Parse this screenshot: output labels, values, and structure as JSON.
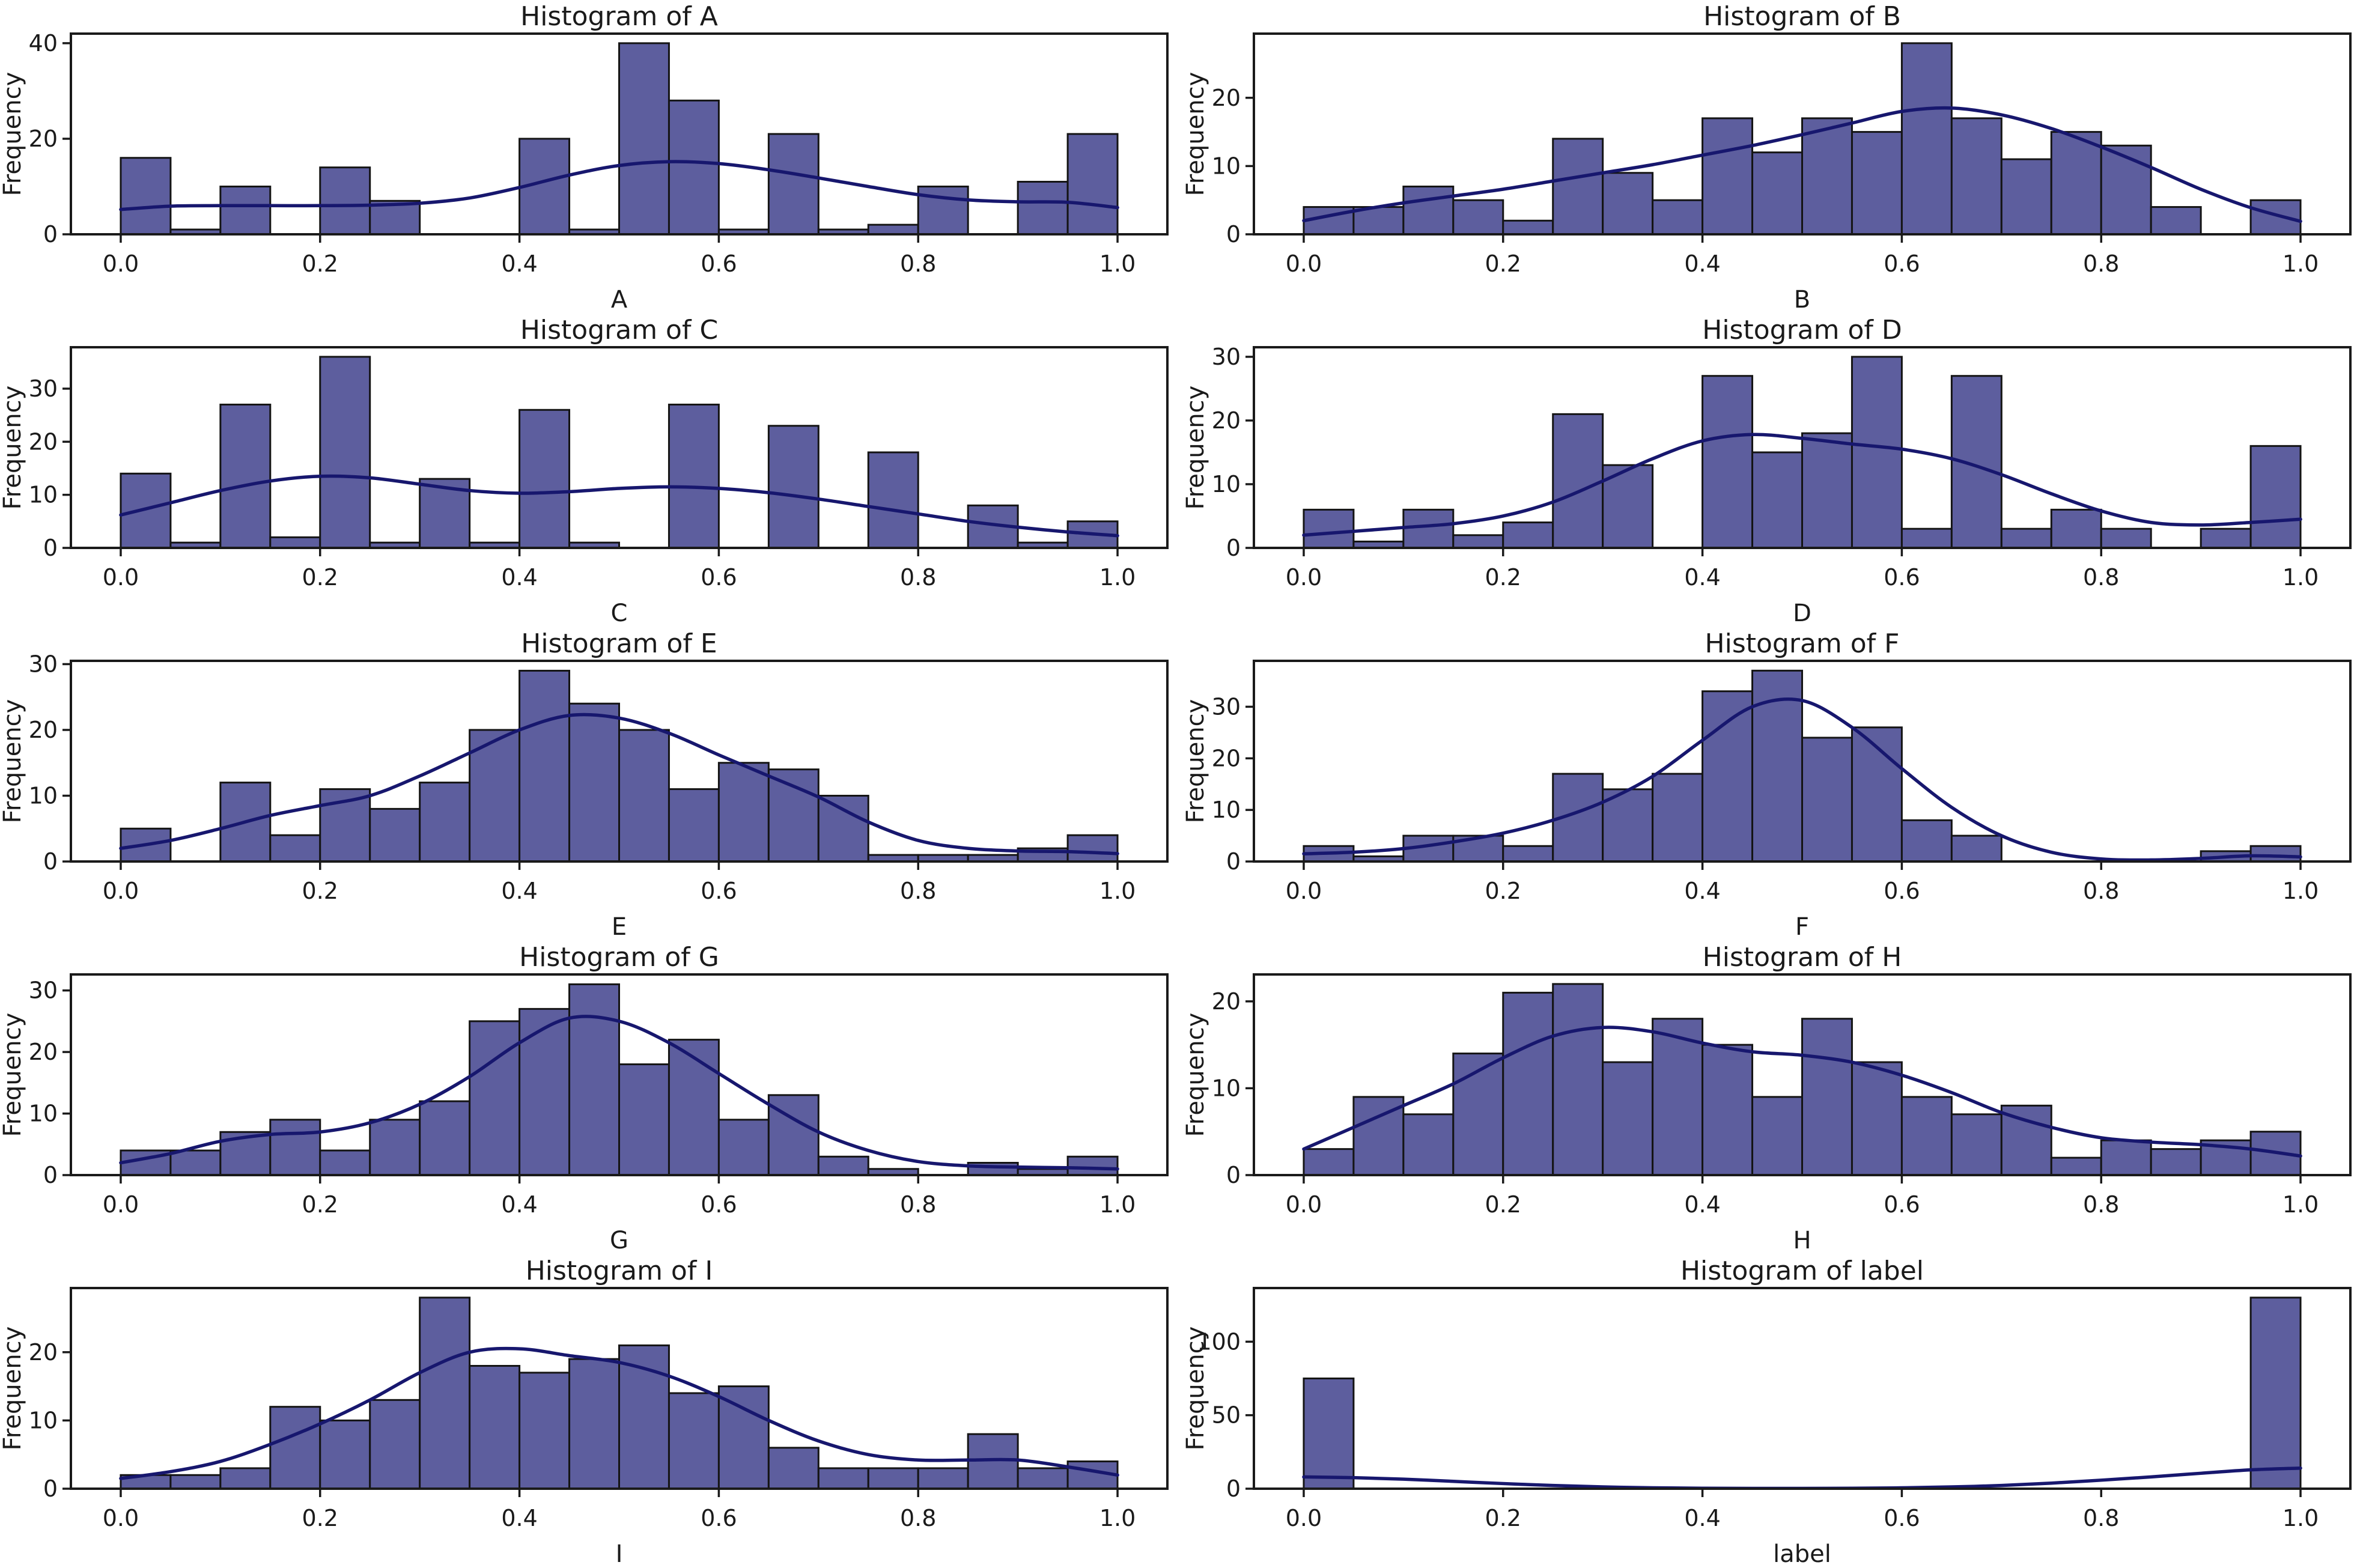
{
  "figure": {
    "background": "#ffffff",
    "bar_fill": "#5d5e9e",
    "bar_edge": "#141414",
    "kde_color": "#17176e",
    "spine_color": "#1a1a1a",
    "text_color": "#1a1a1a",
    "ylabel": "Frequency"
  },
  "chart_data": [
    {
      "type": "bar",
      "subtype": "histogram-with-kde",
      "title": "Histogram of A",
      "xlabel": "A",
      "ylabel": "Frequency",
      "bin_start": 0.0,
      "bin_width": 0.05,
      "counts": [
        16,
        1,
        10,
        0,
        14,
        7,
        0,
        0,
        20,
        1,
        40,
        28,
        1,
        21,
        1,
        2,
        10,
        0,
        11,
        21
      ],
      "x_ticks": [
        0.0,
        0.2,
        0.4,
        0.6,
        0.8,
        1.0
      ],
      "y_ticks": [
        0,
        20,
        40
      ],
      "xlim": [
        -0.05,
        1.05
      ],
      "ylim": [
        0,
        42
      ],
      "grid": false,
      "kde_x": [
        0,
        0.05,
        0.1,
        0.15,
        0.2,
        0.25,
        0.3,
        0.35,
        0.4,
        0.45,
        0.5,
        0.55,
        0.6,
        0.65,
        0.7,
        0.75,
        0.8,
        0.85,
        0.9,
        0.95,
        1.0
      ],
      "kde_y": [
        5.2,
        5.9,
        6.0,
        6.0,
        6.0,
        6.1,
        6.5,
        7.6,
        9.8,
        12.4,
        14.4,
        15.2,
        14.8,
        13.5,
        11.8,
        10.0,
        8.3,
        7.2,
        6.8,
        6.7,
        5.6
      ]
    },
    {
      "type": "bar",
      "subtype": "histogram-with-kde",
      "title": "Histogram of B",
      "xlabel": "B",
      "ylabel": "Frequency",
      "bin_start": 0.0,
      "bin_width": 0.05,
      "counts": [
        4,
        4,
        7,
        5,
        2,
        14,
        9,
        5,
        17,
        12,
        17,
        15,
        28,
        17,
        11,
        15,
        13,
        4,
        0,
        5
      ],
      "x_ticks": [
        0.0,
        0.2,
        0.4,
        0.6,
        0.8,
        1.0
      ],
      "y_ticks": [
        0,
        10,
        20
      ],
      "xlim": [
        -0.05,
        1.05
      ],
      "ylim": [
        0,
        29.4
      ],
      "grid": false,
      "kde_x": [
        0,
        0.05,
        0.1,
        0.15,
        0.2,
        0.25,
        0.3,
        0.35,
        0.4,
        0.45,
        0.5,
        0.55,
        0.6,
        0.65,
        0.7,
        0.75,
        0.8,
        0.85,
        0.9,
        0.95,
        1.0
      ],
      "kde_y": [
        2.0,
        3.4,
        4.6,
        5.6,
        6.6,
        7.8,
        9.0,
        10.2,
        11.6,
        13.0,
        14.6,
        16.3,
        18.0,
        18.5,
        17.5,
        15.5,
        12.8,
        9.8,
        6.6,
        3.9,
        1.9
      ]
    },
    {
      "type": "bar",
      "subtype": "histogram-with-kde",
      "title": "Histogram of C",
      "xlabel": "C",
      "ylabel": "Frequency",
      "bin_start": 0.0,
      "bin_width": 0.05,
      "counts": [
        14,
        1,
        27,
        2,
        36,
        1,
        13,
        1,
        26,
        1,
        0,
        27,
        0,
        23,
        0,
        18,
        0,
        8,
        1,
        5
      ],
      "x_ticks": [
        0.0,
        0.2,
        0.4,
        0.6,
        0.8,
        1.0
      ],
      "y_ticks": [
        0,
        10,
        20,
        30
      ],
      "xlim": [
        -0.05,
        1.05
      ],
      "ylim": [
        0,
        37.8
      ],
      "grid": false,
      "kde_x": [
        0,
        0.05,
        0.1,
        0.15,
        0.2,
        0.25,
        0.3,
        0.35,
        0.4,
        0.45,
        0.5,
        0.55,
        0.6,
        0.65,
        0.7,
        0.75,
        0.8,
        0.85,
        0.9,
        0.95,
        1.0
      ],
      "kde_y": [
        6.2,
        8.5,
        10.8,
        12.6,
        13.5,
        13.2,
        12.0,
        10.8,
        10.3,
        10.6,
        11.2,
        11.5,
        11.2,
        10.4,
        9.2,
        7.8,
        6.4,
        5.0,
        3.9,
        3.0,
        2.3
      ]
    },
    {
      "type": "bar",
      "subtype": "histogram-with-kde",
      "title": "Histogram of D",
      "xlabel": "D",
      "ylabel": "Frequency",
      "bin_start": 0.0,
      "bin_width": 0.05,
      "counts": [
        6,
        1,
        6,
        2,
        4,
        21,
        13,
        0,
        27,
        15,
        18,
        30,
        3,
        27,
        3,
        6,
        3,
        0,
        3,
        16
      ],
      "x_ticks": [
        0.0,
        0.2,
        0.4,
        0.6,
        0.8,
        1.0
      ],
      "y_ticks": [
        0,
        10,
        20,
        30
      ],
      "xlim": [
        -0.05,
        1.05
      ],
      "ylim": [
        0,
        31.5
      ],
      "grid": false,
      "kde_x": [
        0,
        0.05,
        0.1,
        0.15,
        0.2,
        0.25,
        0.3,
        0.35,
        0.4,
        0.45,
        0.5,
        0.55,
        0.6,
        0.65,
        0.7,
        0.75,
        0.8,
        0.85,
        0.9,
        0.95,
        1.0
      ],
      "kde_y": [
        2.0,
        2.6,
        3.2,
        3.8,
        5.0,
        7.2,
        10.5,
        14.0,
        16.8,
        17.8,
        17.2,
        16.3,
        15.5,
        14.0,
        11.5,
        8.5,
        5.8,
        4.0,
        3.6,
        4.0,
        4.5
      ]
    },
    {
      "type": "bar",
      "subtype": "histogram-with-kde",
      "title": "Histogram of E",
      "xlabel": "E",
      "ylabel": "Frequency",
      "bin_start": 0.0,
      "bin_width": 0.05,
      "counts": [
        5,
        0,
        12,
        4,
        11,
        8,
        12,
        20,
        29,
        24,
        20,
        11,
        15,
        14,
        10,
        1,
        1,
        1,
        2,
        4
      ],
      "x_ticks": [
        0.0,
        0.2,
        0.4,
        0.6,
        0.8,
        1.0
      ],
      "y_ticks": [
        0,
        10,
        20,
        30
      ],
      "xlim": [
        -0.05,
        1.05
      ],
      "ylim": [
        0,
        30.5
      ],
      "grid": false,
      "kde_x": [
        0,
        0.05,
        0.1,
        0.15,
        0.2,
        0.25,
        0.3,
        0.35,
        0.4,
        0.45,
        0.5,
        0.55,
        0.6,
        0.65,
        0.7,
        0.75,
        0.8,
        0.85,
        0.9,
        0.95,
        1.0
      ],
      "kde_y": [
        2.0,
        3.2,
        5.0,
        7.0,
        8.5,
        10.0,
        13.0,
        16.5,
        20.0,
        22.2,
        21.8,
        19.5,
        16.2,
        13.0,
        9.8,
        6.0,
        3.2,
        2.0,
        1.6,
        1.5,
        1.2
      ]
    },
    {
      "type": "bar",
      "subtype": "histogram-with-kde",
      "title": "Histogram of F",
      "xlabel": "F",
      "ylabel": "Frequency",
      "bin_start": 0.0,
      "bin_width": 0.05,
      "counts": [
        3,
        1,
        5,
        5,
        3,
        17,
        14,
        17,
        33,
        37,
        24,
        26,
        8,
        5,
        0,
        0,
        0,
        0,
        2,
        3
      ],
      "x_ticks": [
        0.0,
        0.2,
        0.4,
        0.6,
        0.8,
        1.0
      ],
      "y_ticks": [
        0,
        10,
        20,
        30
      ],
      "xlim": [
        -0.05,
        1.05
      ],
      "ylim": [
        0,
        38.9
      ],
      "grid": false,
      "kde_x": [
        0,
        0.05,
        0.1,
        0.15,
        0.2,
        0.25,
        0.3,
        0.35,
        0.4,
        0.45,
        0.5,
        0.55,
        0.6,
        0.65,
        0.7,
        0.75,
        0.8,
        0.85,
        0.9,
        0.95,
        1.0
      ],
      "kde_y": [
        1.5,
        1.8,
        2.5,
        3.8,
        5.5,
        8.0,
        11.5,
        16.5,
        23.5,
        30.0,
        31.2,
        26.0,
        18.0,
        10.5,
        5.0,
        1.8,
        0.5,
        0.3,
        0.6,
        1.1,
        0.9
      ]
    },
    {
      "type": "bar",
      "subtype": "histogram-with-kde",
      "title": "Histogram of G",
      "xlabel": "G",
      "ylabel": "Frequency",
      "bin_start": 0.0,
      "bin_width": 0.05,
      "counts": [
        4,
        4,
        7,
        9,
        4,
        9,
        12,
        25,
        27,
        31,
        18,
        22,
        9,
        13,
        3,
        1,
        0,
        2,
        1,
        3
      ],
      "x_ticks": [
        0.0,
        0.2,
        0.4,
        0.6,
        0.8,
        1.0
      ],
      "y_ticks": [
        0,
        10,
        20,
        30
      ],
      "xlim": [
        -0.05,
        1.05
      ],
      "ylim": [
        0,
        32.6
      ],
      "grid": false,
      "kde_x": [
        0,
        0.05,
        0.1,
        0.15,
        0.2,
        0.25,
        0.3,
        0.35,
        0.4,
        0.45,
        0.5,
        0.55,
        0.6,
        0.65,
        0.7,
        0.75,
        0.8,
        0.85,
        0.9,
        0.95,
        1.0
      ],
      "kde_y": [
        2.0,
        3.5,
        5.5,
        6.6,
        7.0,
        8.5,
        11.5,
        16.0,
        21.5,
        25.5,
        25.0,
        21.5,
        16.5,
        11.5,
        7.0,
        4.0,
        2.2,
        1.5,
        1.3,
        1.2,
        1.0
      ]
    },
    {
      "type": "bar",
      "subtype": "histogram-with-kde",
      "title": "Histogram of H",
      "xlabel": "H",
      "ylabel": "Frequency",
      "bin_start": 0.0,
      "bin_width": 0.05,
      "counts": [
        3,
        9,
        7,
        14,
        21,
        22,
        13,
        18,
        15,
        9,
        18,
        13,
        9,
        7,
        8,
        2,
        4,
        3,
        4,
        5
      ],
      "x_ticks": [
        0.0,
        0.2,
        0.4,
        0.6,
        0.8,
        1.0
      ],
      "y_ticks": [
        0,
        10,
        20
      ],
      "xlim": [
        -0.05,
        1.05
      ],
      "ylim": [
        0,
        23.1
      ],
      "grid": false,
      "kde_x": [
        0,
        0.05,
        0.1,
        0.15,
        0.2,
        0.25,
        0.3,
        0.35,
        0.4,
        0.45,
        0.5,
        0.55,
        0.6,
        0.65,
        0.7,
        0.75,
        0.8,
        0.85,
        0.9,
        0.95,
        1.0
      ],
      "kde_y": [
        3.0,
        5.5,
        8.0,
        10.5,
        13.5,
        16.0,
        17.0,
        16.5,
        15.2,
        14.2,
        13.8,
        13.0,
        11.5,
        9.5,
        7.2,
        5.5,
        4.3,
        3.8,
        3.5,
        3.0,
        2.2
      ]
    },
    {
      "type": "bar",
      "subtype": "histogram-with-kde",
      "title": "Histogram of I",
      "xlabel": "I",
      "ylabel": "Frequency",
      "bin_start": 0.0,
      "bin_width": 0.05,
      "counts": [
        2,
        2,
        3,
        12,
        10,
        13,
        28,
        18,
        17,
        19,
        21,
        14,
        15,
        6,
        3,
        3,
        3,
        8,
        3,
        4
      ],
      "x_ticks": [
        0.0,
        0.2,
        0.4,
        0.6,
        0.8,
        1.0
      ],
      "y_ticks": [
        0,
        10,
        20
      ],
      "xlim": [
        -0.05,
        1.05
      ],
      "ylim": [
        0,
        29.4
      ],
      "grid": false,
      "kde_x": [
        0,
        0.05,
        0.1,
        0.15,
        0.2,
        0.25,
        0.3,
        0.35,
        0.4,
        0.45,
        0.5,
        0.55,
        0.6,
        0.65,
        0.7,
        0.75,
        0.8,
        0.85,
        0.9,
        0.95,
        1.0
      ],
      "kde_y": [
        1.5,
        2.5,
        4.0,
        6.5,
        9.5,
        13.0,
        17.0,
        20.0,
        20.5,
        19.5,
        18.5,
        16.5,
        13.5,
        10.0,
        7.0,
        5.0,
        4.2,
        4.2,
        4.2,
        3.2,
        2.0
      ]
    },
    {
      "type": "bar",
      "subtype": "histogram-with-kde",
      "title": "Histogram of label",
      "xlabel": "label",
      "ylabel": "Frequency",
      "bin_start": 0.0,
      "bin_width": 0.05,
      "counts": [
        75,
        0,
        0,
        0,
        0,
        0,
        0,
        0,
        0,
        0,
        0,
        0,
        0,
        0,
        0,
        0,
        0,
        0,
        0,
        130
      ],
      "x_ticks": [
        0.0,
        0.2,
        0.4,
        0.6,
        0.8,
        1.0
      ],
      "y_ticks": [
        0,
        50,
        100
      ],
      "xlim": [
        -0.05,
        1.05
      ],
      "ylim": [
        0,
        136.5
      ],
      "grid": false,
      "kde_x": [
        0,
        0.05,
        0.1,
        0.15,
        0.2,
        0.25,
        0.3,
        0.35,
        0.4,
        0.45,
        0.5,
        0.55,
        0.6,
        0.65,
        0.7,
        0.75,
        0.8,
        0.85,
        0.9,
        0.95,
        1.0
      ],
      "kde_y": [
        8.0,
        7.5,
        6.5,
        5.0,
        3.5,
        2.2,
        1.2,
        0.6,
        0.3,
        0.2,
        0.2,
        0.3,
        0.6,
        1.2,
        2.2,
        3.8,
        5.8,
        8.0,
        10.5,
        12.8,
        14.0
      ]
    }
  ]
}
